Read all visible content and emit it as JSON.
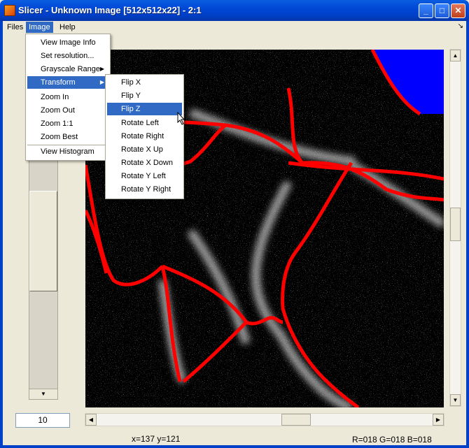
{
  "window": {
    "title": "Slicer - Unknown Image [512x512x22] - 2:1",
    "controls": [
      "minimize-icon",
      "maximize-icon",
      "close-icon"
    ]
  },
  "menubar": {
    "files": "Files",
    "image": "Image",
    "help": "Help",
    "corner": "↘"
  },
  "image_menu": {
    "items": [
      {
        "label": "View Image Info"
      },
      {
        "label": "Set resolution..."
      },
      {
        "label": "Grayscale Range",
        "submenu": true
      },
      {
        "label": "Transform",
        "submenu": true,
        "active": true
      },
      {
        "label": "Zoom In"
      },
      {
        "label": "Zoom Out"
      },
      {
        "label": "Zoom 1:1"
      },
      {
        "label": "Zoom Best"
      },
      {
        "label": "View Histogram"
      }
    ]
  },
  "transform_menu": {
    "items": [
      {
        "label": "Flip X"
      },
      {
        "label": "Flip Y"
      },
      {
        "label": "Flip Z",
        "active": true
      },
      {
        "label": "Rotate Left"
      },
      {
        "label": "Rotate Right"
      },
      {
        "label": "Rotate X Up"
      },
      {
        "label": "Rotate X Down"
      },
      {
        "label": "Rotate Y Left"
      },
      {
        "label": "Rotate Y Right"
      }
    ]
  },
  "slice_input": {
    "value": "10"
  },
  "status": {
    "coords": "x=137 y=121",
    "rgb": "R=018 G=018 B=018"
  },
  "colors": {
    "contour": "#ff0000",
    "fill_region": "#0000ff",
    "menu_highlight": "#316ac5"
  },
  "icons": {
    "submenu_arrow": "▶",
    "up_arrow": "▲",
    "down_arrow": "▼",
    "left_arrow": "◀",
    "right_arrow": "▶"
  }
}
